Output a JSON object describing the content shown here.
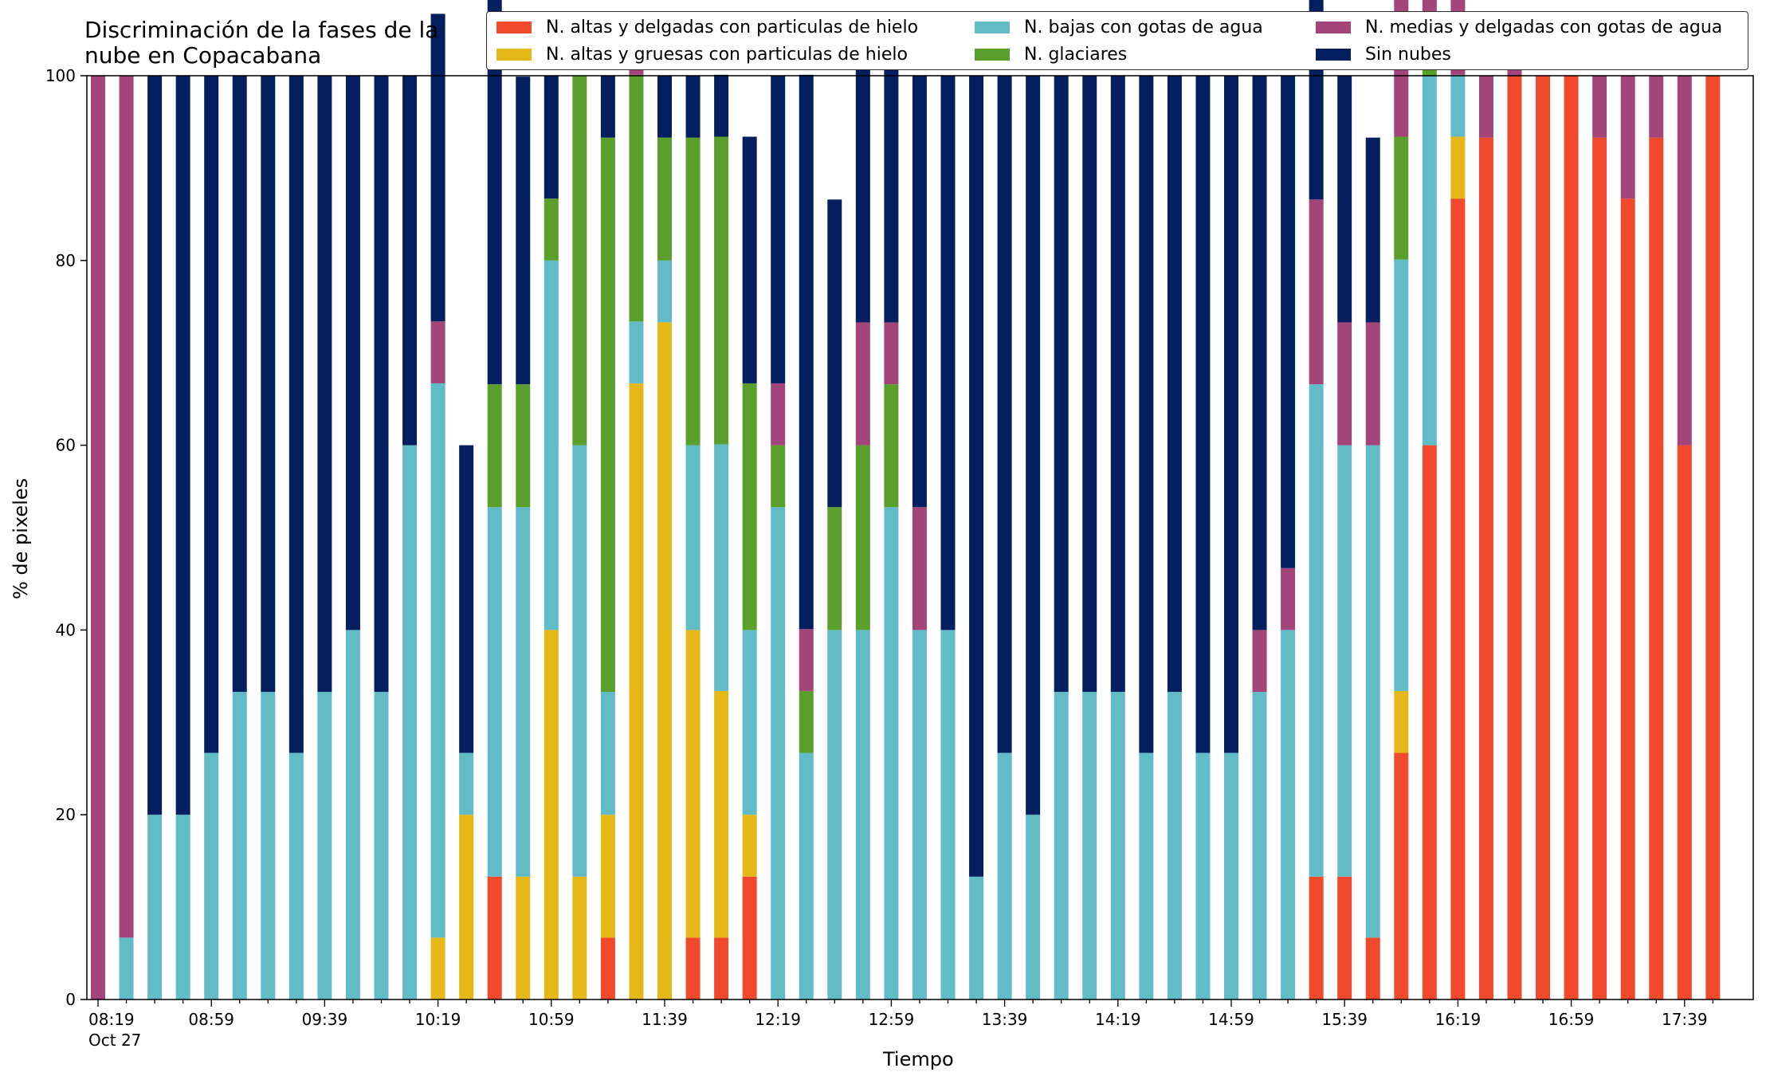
{
  "chart_data": {
    "type": "bar",
    "stacked": true,
    "title": "Discriminación de la fases de la\nnube en Copacabana",
    "xlabel": "Tiempo",
    "ylabel": "% de pixeles",
    "ylim": [
      0,
      100
    ],
    "yticks": [
      0,
      20,
      40,
      60,
      80,
      100
    ],
    "xtick_labels": [
      "08:19",
      "08:59",
      "09:39",
      "10:19",
      "10:59",
      "11:39",
      "12:19",
      "12:59",
      "13:39",
      "14:19",
      "14:59",
      "15:39",
      "16:19",
      "16:59",
      "17:39"
    ],
    "xtick_sublabel": "Oct 27",
    "legend_placement": "top",
    "series_order": [
      "altas_delgadas",
      "altas_gruesas",
      "bajas",
      "glaciares",
      "medias",
      "sin_nubes"
    ],
    "series_meta": [
      {
        "key": "altas_delgadas",
        "name": "N. altas y delgadas con particulas de hielo",
        "color": "#f0492c"
      },
      {
        "key": "altas_gruesas",
        "name": "N. altas y gruesas con particulas de hielo",
        "color": "#e6b817"
      },
      {
        "key": "bajas",
        "name": "N. bajas con gotas de agua",
        "color": "#62bcc8"
      },
      {
        "key": "glaciares",
        "name": "N. glaciares",
        "color": "#5a9e2c"
      },
      {
        "key": "medias",
        "name": "N. medias y delgadas con gotas de agua",
        "color": "#a3447b"
      },
      {
        "key": "sin_nubes",
        "name": "Sin nubes",
        "color": "#041f60"
      }
    ],
    "times": [
      "08:19",
      "08:29",
      "08:39",
      "08:49",
      "08:59",
      "09:09",
      "09:19",
      "09:29",
      "09:39",
      "09:49",
      "09:59",
      "10:09",
      "10:19",
      "10:29",
      "10:39",
      "10:49",
      "10:59",
      "11:09",
      "11:19",
      "11:29",
      "11:39",
      "11:49",
      "11:59",
      "12:09",
      "12:19",
      "12:29",
      "12:39",
      "12:49",
      "12:59",
      "13:09",
      "13:19",
      "13:29",
      "13:39",
      "13:49",
      "13:59",
      "14:09",
      "14:19",
      "14:29",
      "14:39",
      "14:49",
      "14:59",
      "15:09",
      "15:19",
      "15:29",
      "15:39",
      "15:49",
      "15:59",
      "16:09",
      "16:19",
      "16:29",
      "16:39",
      "16:49",
      "16:59",
      "17:09",
      "17:19",
      "17:29",
      "17:39",
      "17:49"
    ],
    "series": {
      "altas_delgadas": [
        0,
        0,
        0,
        0,
        0,
        0,
        0,
        0,
        0,
        0,
        0,
        0,
        0,
        0,
        13.3,
        0,
        0,
        0,
        6.7,
        0,
        0,
        6.7,
        6.7,
        13.3,
        0,
        0,
        0,
        0,
        0,
        0,
        0,
        0,
        0,
        0,
        0,
        0,
        0,
        0,
        0,
        0,
        0,
        0,
        0,
        13.3,
        13.3,
        6.7,
        26.7,
        60,
        86.7,
        93.3,
        100,
        100,
        100,
        93.3,
        86.7,
        93.3,
        60,
        100
      ],
      "altas_gruesas": [
        0,
        0,
        0,
        0,
        0,
        0,
        0,
        0,
        0,
        0,
        0,
        0,
        6.7,
        20,
        0,
        13.3,
        40,
        13.3,
        13.3,
        66.7,
        73.3,
        33.3,
        26.7,
        6.7,
        0,
        0,
        0,
        0,
        0,
        0,
        0,
        0,
        0,
        0,
        0,
        0,
        0,
        0,
        0,
        0,
        0,
        0,
        0,
        0,
        0,
        0,
        6.7,
        0,
        6.7,
        0,
        0,
        0,
        0,
        0,
        0,
        0,
        0,
        0
      ],
      "bajas": [
        0,
        6.7,
        20,
        20,
        26.7,
        33.3,
        33.3,
        26.7,
        33.3,
        40,
        33.3,
        60,
        60,
        6.7,
        40,
        40,
        40,
        46.7,
        13.3,
        6.7,
        6.7,
        20,
        26.7,
        20,
        53.3,
        26.7,
        40,
        40,
        53.3,
        40,
        40,
        13.3,
        26.7,
        20,
        33.3,
        33.3,
        33.3,
        26.7,
        33.3,
        26.7,
        26.7,
        33.3,
        40,
        53.3,
        46.7,
        53.3,
        46.7,
        40,
        6.7,
        0,
        0,
        0,
        0,
        0,
        0,
        0,
        0,
        0
      ],
      "glaciares": [
        0,
        0,
        0,
        0,
        0,
        0,
        0,
        0,
        0,
        0,
        0,
        0,
        0,
        0,
        13.3,
        13.3,
        6.7,
        40,
        60,
        26.7,
        13.3,
        33.3,
        33.3,
        26.7,
        6.7,
        6.7,
        13.3,
        20,
        13.3,
        0,
        0,
        0,
        0,
        0,
        0,
        0,
        0,
        0,
        0,
        0,
        0,
        0,
        0,
        0,
        0,
        0,
        13.3,
        6.7,
        0,
        0,
        0,
        0,
        0,
        0,
        0,
        0,
        0,
        0
      ],
      "medias": [
        100,
        93.3,
        0,
        0,
        0,
        0,
        0,
        0,
        0,
        0,
        0,
        0,
        6.7,
        0,
        0,
        0,
        0,
        0,
        0,
        6.7,
        0,
        0,
        0,
        0,
        6.7,
        6.7,
        0,
        13.3,
        6.7,
        13.3,
        0,
        0,
        0,
        0,
        0,
        0,
        0,
        0,
        0,
        0,
        0,
        6.7,
        6.7,
        20,
        13.3,
        13.3,
        20,
        20,
        33.3,
        6.7,
        6.7,
        0,
        0,
        6.7,
        13.3,
        6.7,
        40,
        0
      ],
      "sin_nubes": [
        0,
        0,
        80,
        80,
        73.3,
        66.7,
        66.7,
        73.3,
        66.7,
        60,
        66.7,
        40,
        33.3,
        33.3,
        46.7,
        33.3,
        13.3,
        0,
        6.7,
        0,
        6.7,
        6.7,
        6.7,
        26.7,
        33.3,
        60,
        33.3,
        33.3,
        33.3,
        46.7,
        60,
        86.7,
        73.3,
        80,
        66.7,
        66.7,
        66.7,
        73.3,
        66.7,
        73.3,
        73.3,
        60,
        53.3,
        26.7,
        26.7,
        20,
        13.3,
        0,
        0,
        0,
        0,
        0,
        0,
        0,
        0,
        0,
        0,
        0
      ]
    }
  }
}
